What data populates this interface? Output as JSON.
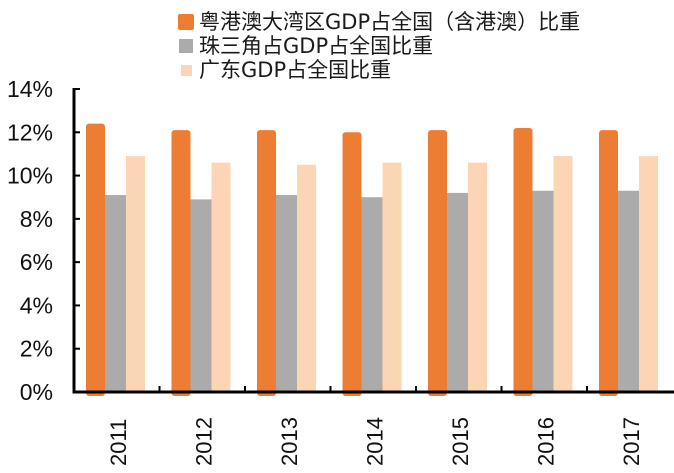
{
  "chart_data": {
    "type": "bar",
    "title": "",
    "xlabel": "",
    "ylabel": "",
    "categories": [
      "2011",
      "2012",
      "2013",
      "2014",
      "2015",
      "2016",
      "2017"
    ],
    "series": [
      {
        "name": "粤港澳大湾区GDP占全国（含港澳）比重",
        "color": "#EE7D34",
        "values": [
          12.4,
          12.1,
          12.1,
          12.0,
          12.1,
          12.2,
          12.1
        ]
      },
      {
        "name": "珠三角占GDP占全国比重",
        "color": "#ABABAB",
        "values": [
          9.1,
          8.9,
          9.1,
          9.0,
          9.2,
          9.3,
          9.3
        ]
      },
      {
        "name": "广东GDP占全国比重",
        "color": "#FCD5B5",
        "values": [
          10.9,
          10.6,
          10.5,
          10.6,
          10.6,
          10.9,
          10.9
        ]
      }
    ],
    "ylim": [
      0,
      14
    ],
    "yticks": [
      0,
      2,
      4,
      6,
      8,
      10,
      12,
      14
    ],
    "ytick_labels": [
      "0%",
      "2%",
      "4%",
      "6%",
      "8%",
      "10%",
      "12%",
      "14%"
    ],
    "grid": false,
    "legend_position": "top"
  }
}
